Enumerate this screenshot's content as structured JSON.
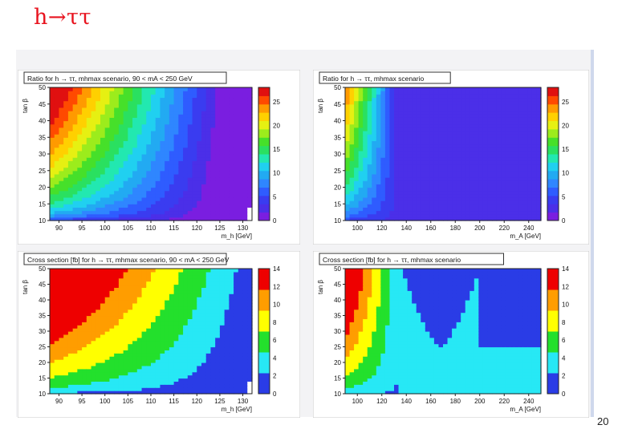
{
  "slide": {
    "title": "h→ττ",
    "page_number": "20"
  },
  "colors": {
    "title_red": "#e8131e",
    "palette": [
      "#7a1ee0",
      "#4b2fe8",
      "#3a3cf0",
      "#2f5cff",
      "#2f86ff",
      "#22aaf2",
      "#20d0f0",
      "#22e8b0",
      "#2ae060",
      "#46e02a",
      "#9cec1c",
      "#e6f012",
      "#ffd000",
      "#ff9a00",
      "#ff4a00",
      "#e01010"
    ],
    "xsec_bands": [
      "#2a3ce6",
      "#27e8f5",
      "#23e02c",
      "#ffff00",
      "#ff9d00",
      "#ee0000"
    ]
  },
  "chart_data": [
    {
      "type": "heatmap",
      "title": "Ratio for h → ττ, mhmax scenario, 90 < mA < 250 GeV",
      "ylabel": "tan β",
      "xlabel": "m_h [GeV]",
      "x_ticks": [
        "90",
        "95",
        "100",
        "105",
        "110",
        "115",
        "120",
        "125",
        "130"
      ],
      "y_ticks": [
        "10",
        "15",
        "20",
        "25",
        "30",
        "35",
        "40",
        "45",
        "50"
      ],
      "xlim": [
        88,
        132
      ],
      "ylim": [
        10,
        50
      ],
      "colorbar_ticks": [
        "0",
        "5",
        "10",
        "15",
        "20",
        "25"
      ],
      "z_range": [
        0,
        28
      ],
      "style": "ratio-mh"
    },
    {
      "type": "heatmap",
      "title": "Ratio for h → ττ, mhmax scenario",
      "ylabel": "tan β",
      "xlabel": "m_A [GeV]",
      "x_ticks": [
        "100",
        "120",
        "140",
        "160",
        "180",
        "200",
        "220",
        "240"
      ],
      "y_ticks": [
        "10",
        "15",
        "20",
        "25",
        "30",
        "35",
        "40",
        "45",
        "50"
      ],
      "xlim": [
        90,
        250
      ],
      "ylim": [
        10,
        50
      ],
      "colorbar_ticks": [
        "0",
        "5",
        "10",
        "15",
        "20",
        "25"
      ],
      "z_range": [
        0,
        28
      ],
      "style": "ratio-mA"
    },
    {
      "type": "heatmap",
      "title": "Cross section [fb] for h → ττ, mhmax scenario, 90 < mA < 250 GeV",
      "ylabel": "tan β",
      "xlabel": "m_h [GeV]",
      "x_ticks": [
        "90",
        "95",
        "100",
        "105",
        "110",
        "115",
        "120",
        "125",
        "130"
      ],
      "y_ticks": [
        "10",
        "15",
        "20",
        "25",
        "30",
        "35",
        "40",
        "45",
        "50"
      ],
      "xlim": [
        88,
        132
      ],
      "ylim": [
        10,
        50
      ],
      "colorbar_ticks": [
        "0",
        "2",
        "4",
        "6",
        "8",
        "10",
        "12",
        "14"
      ],
      "z_range": [
        0,
        14
      ],
      "style": "xsec-mh"
    },
    {
      "type": "heatmap",
      "title": "Cross section [fb] for h → ττ, mhmax scenario",
      "ylabel": "tan β",
      "xlabel": "m_A [GeV]",
      "x_ticks": [
        "100",
        "120",
        "140",
        "160",
        "180",
        "200",
        "220",
        "240"
      ],
      "y_ticks": [
        "10",
        "15",
        "20",
        "25",
        "30",
        "35",
        "40",
        "45",
        "50"
      ],
      "xlim": [
        90,
        250
      ],
      "ylim": [
        10,
        50
      ],
      "colorbar_ticks": [
        "0",
        "2",
        "4",
        "6",
        "8",
        "10",
        "12",
        "14"
      ],
      "z_range": [
        0,
        14
      ],
      "style": "xsec-mA"
    }
  ]
}
